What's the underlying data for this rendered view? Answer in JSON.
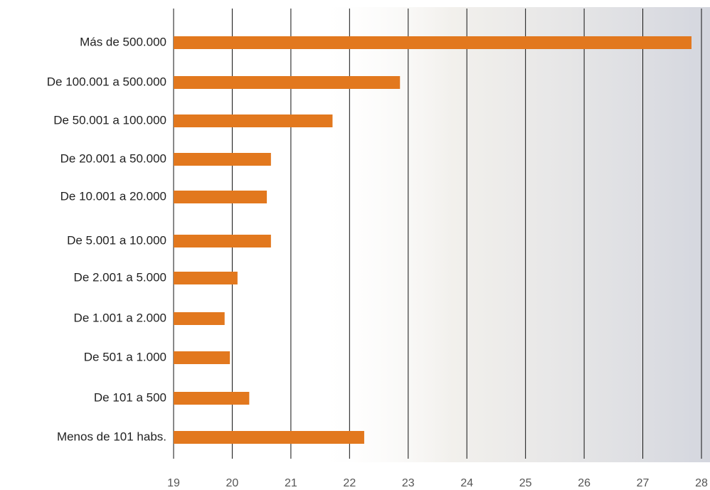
{
  "chart_data": {
    "type": "barh",
    "categories": [
      "Más de 500.000",
      "De 100.001 a 500.000",
      "De 50.001 a 100.000",
      "De 20.001 a 50.000",
      "De 10.001 a 20.000",
      "De 5.001 a 10.000",
      "De 2.001 a 5.000",
      "De 1.001 a 2.000",
      "De 501 a 1.000",
      "De 101 a 500",
      "Menos de 101 habs."
    ],
    "values": [
      27.83,
      22.86,
      21.71,
      20.66,
      20.59,
      20.66,
      20.09,
      19.87,
      19.96,
      20.29,
      22.25
    ],
    "color": "#e2781e",
    "xlim": [
      19,
      28
    ],
    "xticks": [
      19,
      20,
      21,
      22,
      23,
      24,
      25,
      26,
      27,
      28
    ],
    "grid": true
  }
}
